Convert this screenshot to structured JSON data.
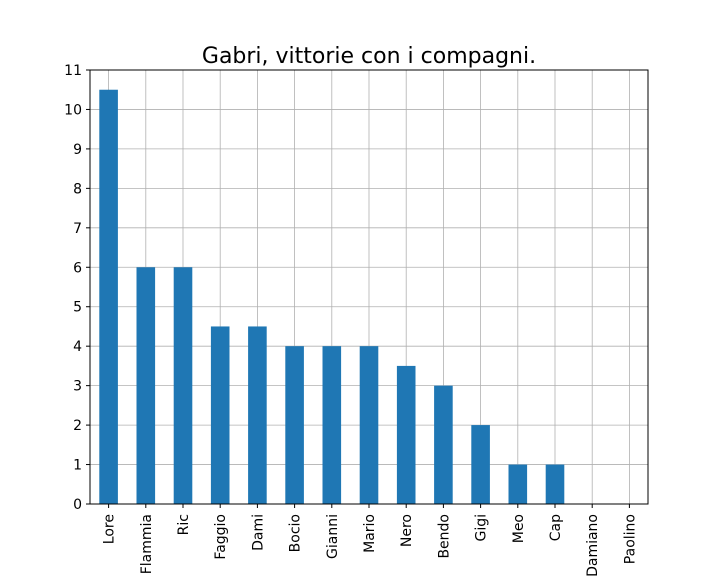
{
  "chart_data": {
    "type": "bar",
    "title": "Gabri, vittorie con i compagni.",
    "xlabel": "",
    "ylabel": "",
    "categories": [
      "Lore",
      "Flammia",
      "Ric",
      "Faggio",
      "Dami",
      "Bocio",
      "Gianni",
      "Mario",
      "Nero",
      "Bendo",
      "Gigi",
      "Meo",
      "Cap",
      "Damiano",
      "Paolino"
    ],
    "values": [
      10.5,
      6,
      6,
      4.5,
      4.5,
      4,
      4,
      4,
      3.5,
      3,
      2,
      1,
      1,
      0,
      0
    ],
    "ylim": [
      0,
      11
    ],
    "yticks": [
      0,
      1,
      2,
      3,
      4,
      5,
      6,
      7,
      8,
      9,
      10,
      11
    ],
    "grid": true,
    "bar_color": "#1f77b4"
  }
}
